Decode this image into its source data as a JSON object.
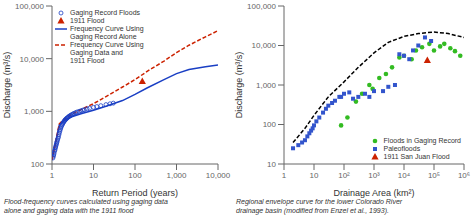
{
  "chart_data": [
    {
      "type": "scatter",
      "xlabel": "Return Period (years)",
      "ylabel": "Discharge (m³/s)",
      "caption": "Flood-frequency curves calculated using gaging data\nalone and gaging data with the 1911 flood",
      "log": true,
      "grid": false,
      "legend": "upper left",
      "xlim": [
        1,
        10000
      ],
      "ylim": [
        100,
        100000
      ],
      "xticks": [
        1,
        10,
        100,
        {
          "value": 1000,
          "label": "1,000"
        },
        {
          "value": 10000,
          "label": "10,000"
        }
      ],
      "yticks": [
        100,
        {
          "value": 1000,
          "label": "1,000"
        },
        {
          "value": 10000,
          "label": "10,000"
        },
        {
          "value": 100000,
          "label": "100,000"
        }
      ],
      "series": [
        {
          "name": "Gaging Record Floods",
          "type": "scatter",
          "marker": "open_circle",
          "color": "#1a3fc4",
          "x": [
            1.05,
            1.08,
            1.1,
            1.12,
            1.15,
            1.18,
            1.2,
            1.22,
            1.25,
            1.28,
            1.3,
            1.33,
            1.36,
            1.4,
            1.43,
            1.47,
            1.5,
            1.54,
            1.58,
            1.62,
            1.67,
            1.72,
            1.77,
            1.82,
            1.88,
            1.94,
            2.0,
            2.07,
            2.14,
            2.22,
            2.3,
            2.4,
            2.5,
            2.6,
            2.72,
            2.85,
            3.0,
            3.2,
            3.4,
            3.7,
            4.0,
            4.5,
            5.0,
            5.5,
            6.0,
            7.0,
            8.0,
            10.0,
            12.0,
            15.0,
            20.0,
            25.0,
            30.0
          ],
          "values": [
            130,
            140,
            150,
            160,
            175,
            185,
            200,
            210,
            225,
            240,
            255,
            270,
            290,
            310,
            330,
            360,
            390,
            420,
            450,
            480,
            510,
            540,
            565,
            590,
            615,
            640,
            660,
            685,
            705,
            725,
            745,
            765,
            785,
            805,
            825,
            845,
            865,
            890,
            915,
            945,
            970,
            1000,
            1025,
            1050,
            1070,
            1110,
            1140,
            1190,
            1230,
            1280,
            1340,
            1390,
            1430
          ]
        },
        {
          "name": "1911 Flood",
          "type": "scatter",
          "marker": "triangle",
          "color": "#cc2200",
          "x": [
            150
          ],
          "values": [
            3700
          ]
        },
        {
          "name": "Frequency Curve Using\nGaging Record Alone",
          "type": "line",
          "line_style": "solid",
          "color": "#1a3fc4",
          "x": [
            1.0,
            1.5,
            2,
            3,
            5,
            10,
            20,
            50,
            100,
            200,
            500,
            1000,
            2000,
            5000,
            10000
          ],
          "values": [
            120,
            550,
            680,
            790,
            900,
            1050,
            1250,
            1600,
            2100,
            2800,
            4000,
            5200,
            6200,
            7000,
            7600
          ]
        },
        {
          "name": "Frequency Curve Using\nGaging Data and\n1911 Flood",
          "type": "line",
          "line_style": "dashed",
          "color": "#cc2200",
          "x": [
            1.0,
            1.5,
            2,
            3,
            5,
            10,
            20,
            50,
            100,
            200,
            500,
            1000,
            2000,
            5000,
            10000
          ],
          "values": [
            120,
            580,
            720,
            880,
            1080,
            1400,
            1900,
            2900,
            4000,
            5800,
            9000,
            13000,
            18000,
            26000,
            34000
          ]
        }
      ]
    },
    {
      "type": "scatter",
      "xlabel": "Drainage Area (km²)",
      "ylabel": "Discharge (m³/s)",
      "caption": "Regional envelope curve for the lower Colorado River\ndrainage basin (modified from Enzel et al., 1993).",
      "log": true,
      "grid": false,
      "legend": "lower right",
      "xlim": [
        1,
        1000000
      ],
      "ylim": [
        10,
        100000
      ],
      "xticks": [
        1,
        10,
        {
          "value": 100,
          "label": "10²"
        },
        {
          "value": 1000,
          "label": "10³"
        },
        {
          "value": 10000,
          "label": "10⁴"
        },
        {
          "value": 100000,
          "label": "10⁵"
        },
        {
          "value": 1000000,
          "label": "10⁶"
        }
      ],
      "yticks": [
        10,
        100,
        {
          "value": 1000,
          "label": "1,000"
        },
        {
          "value": 10000,
          "label": "10,000"
        },
        {
          "value": 100000,
          "label": "100,000"
        }
      ],
      "series": [
        {
          "name": "Floods in Gaging Record",
          "type": "scatter",
          "marker": "circle",
          "color": "#33bb22",
          "x": [
            80,
            130,
            250,
            400,
            700,
            900,
            1500,
            2500,
            4000,
            7000,
            10000,
            18000,
            25000,
            40000,
            70000,
            100000,
            160000,
            220000,
            350000,
            500000,
            750000
          ],
          "values": [
            95,
            150,
            380,
            600,
            1000,
            800,
            1500,
            1900,
            2800,
            5000,
            5500,
            4500,
            7500,
            9000,
            11000,
            7500,
            9500,
            11000,
            8500,
            7200,
            5500
          ]
        },
        {
          "name": "Paleofloods",
          "type": "scatter",
          "marker": "square",
          "color": "#3355cc",
          "x": [
            2,
            3,
            4,
            5,
            6,
            7,
            8,
            9,
            10,
            12,
            15,
            20,
            25,
            30,
            40,
            50,
            70,
            80,
            100,
            150,
            200,
            300,
            500,
            700,
            1000,
            2000,
            3000,
            5000,
            7000,
            10000,
            15000,
            20000,
            30000,
            50000,
            80000
          ],
          "values": [
            25,
            30,
            35,
            40,
            50,
            60,
            70,
            80,
            95,
            120,
            150,
            200,
            250,
            300,
            350,
            400,
            500,
            500,
            600,
            650,
            450,
            500,
            600,
            500,
            700,
            700,
            900,
            1000,
            6000,
            5500,
            4500,
            7500,
            10000,
            16000,
            13000
          ]
        },
        {
          "name": "1911 San Juan Flood",
          "type": "scatter",
          "marker": "triangle",
          "color": "#cc2200",
          "x": [
            60000
          ],
          "values": [
            4200
          ]
        },
        {
          "type": "line",
          "line_style": "dashed",
          "color": "#000000",
          "x": [
            2,
            5,
            10,
            30,
            100,
            300,
            1000,
            3000,
            10000,
            30000,
            100000,
            300000,
            1000000
          ],
          "values": [
            35,
            80,
            170,
            500,
            1200,
            2800,
            6500,
            12000,
            17000,
            20000,
            22000,
            20000,
            16000
          ]
        }
      ]
    }
  ]
}
